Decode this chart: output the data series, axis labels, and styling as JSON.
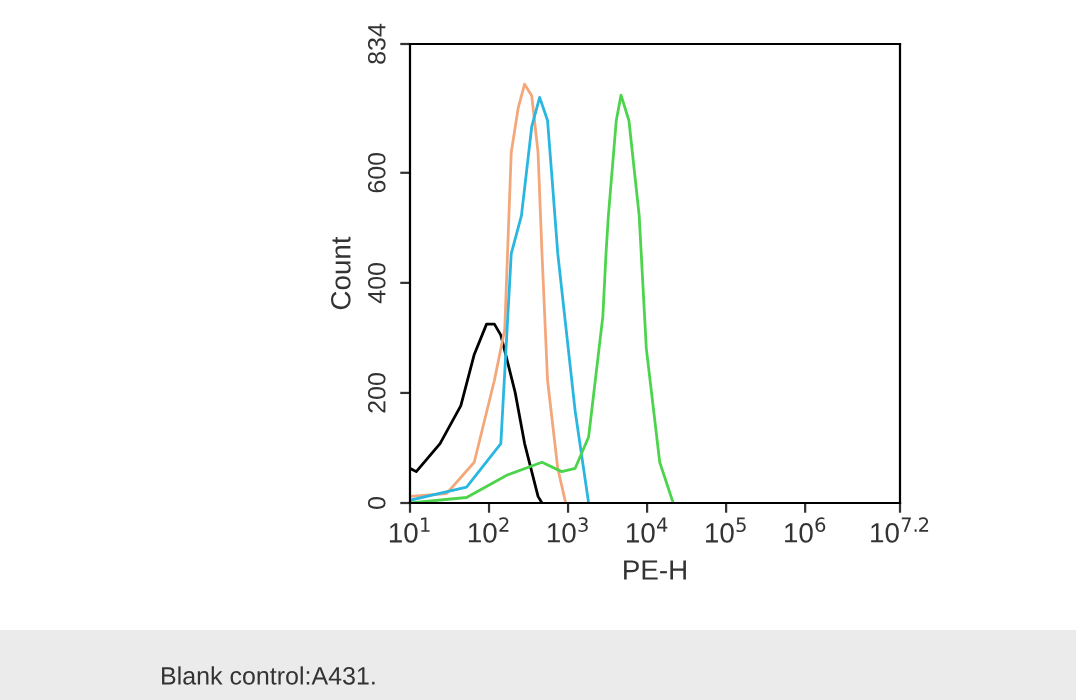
{
  "chart_data": {
    "type": "line",
    "xlabel": "PE-H",
    "ylabel": "Count",
    "log": "x",
    "xlim": [
      10,
      15848932
    ],
    "xticks": [
      {
        "value": 10,
        "label": "10$^{1}$"
      },
      {
        "value": 100,
        "label": "10$^{2}$"
      },
      {
        "value": 1000,
        "label": "10$^{3}$"
      },
      {
        "value": 10000,
        "label": "10$^{4}$"
      },
      {
        "value": 100000,
        "label": "10$^{5}$"
      },
      {
        "value": 1000000,
        "label": "10$^{6}$"
      },
      {
        "value": 15848932,
        "label": "10$^{7.2}$"
      }
    ],
    "ylim": [
      0,
      834
    ],
    "yticks": [
      0,
      200,
      400,
      600,
      834
    ],
    "grid": false,
    "marker": "none",
    "line_style": "solid",
    "series": [
      {
        "color": "#000000",
        "x": [
          10,
          12,
          24,
          44,
          65,
          93,
          117,
          141,
          214,
          282,
          417,
          468
        ],
        "values": [
          63,
          57,
          108,
          177,
          270,
          325,
          325,
          305,
          201,
          108,
          12,
          0
        ]
      },
      {
        "color": "#f4a77a",
        "x": [
          10,
          29,
          65,
          117,
          158,
          191,
          234,
          282,
          347,
          417,
          468,
          550,
          741,
          933
        ],
        "values": [
          12,
          17,
          74,
          223,
          315,
          637,
          718,
          761,
          740,
          637,
          453,
          223,
          63,
          0
        ]
      },
      {
        "color": "#29b6e0",
        "x": [
          10,
          52,
          141,
          191,
          257,
          347,
          437,
          550,
          617,
          741,
          1230,
          1820
        ],
        "values": [
          5,
          29,
          108,
          453,
          522,
          684,
          737,
          695,
          603,
          453,
          167,
          0
        ]
      },
      {
        "color": "#4cd44c",
        "x": [
          10,
          52,
          170,
          468,
          832,
          1230,
          1820,
          2754,
          3020,
          3236,
          4074,
          4677,
          5888,
          7943,
          9772,
          14454,
          21380
        ],
        "values": [
          0,
          10,
          51,
          74,
          57,
          63,
          120,
          339,
          453,
          522,
          695,
          741,
          695,
          522,
          281,
          74,
          0
        ]
      }
    ],
    "annotations": [
      "Blank control:A431."
    ]
  }
}
